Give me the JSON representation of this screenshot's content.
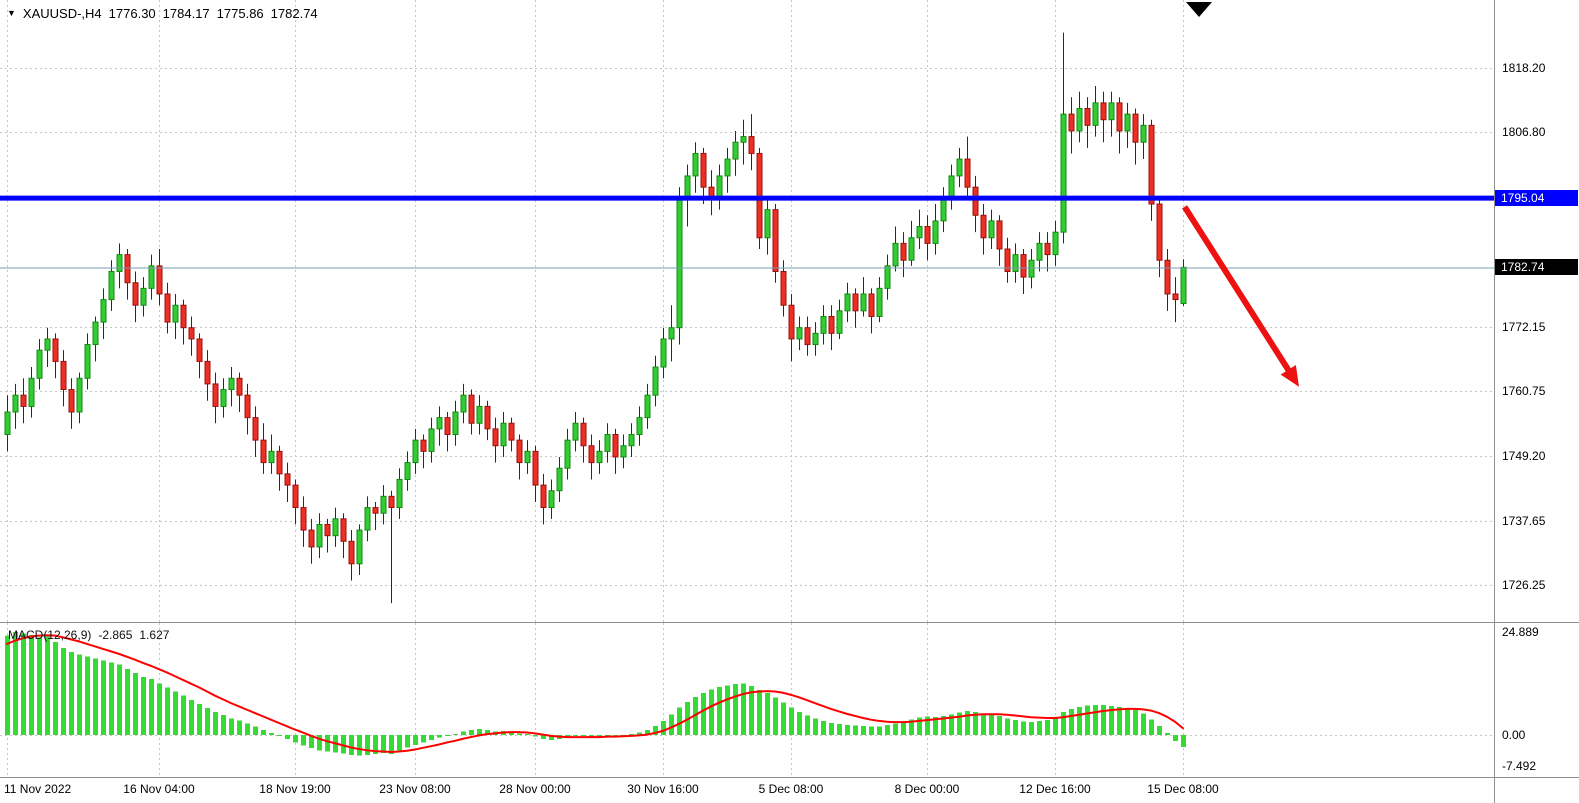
{
  "header": {
    "collapse_arrow": "▼",
    "symbol_period": "XAUUSD-,H4",
    "open": "1776.30",
    "high": "1784.17",
    "low": "1775.86",
    "close": "1782.74"
  },
  "indicator_label": {
    "name": "MACD(12,26,9)",
    "main_value": "-2.865",
    "signal_value": "1.627"
  },
  "price_axis": {
    "ticks": [
      {
        "label": "1818.20",
        "price": 1818.2
      },
      {
        "label": "1806.80",
        "price": 1806.8
      },
      {
        "label": "1772.15",
        "price": 1772.15
      },
      {
        "label": "1760.75",
        "price": 1760.75
      },
      {
        "label": "1749.20",
        "price": 1749.2
      },
      {
        "label": "1737.65",
        "price": 1737.65
      },
      {
        "label": "1726.25",
        "price": 1726.25
      }
    ],
    "line_tag": "1795.04",
    "current_tag": "1782.74"
  },
  "macd_axis": {
    "ticks": [
      {
        "label": "24.889",
        "value": 24.889
      },
      {
        "label": "0.00",
        "value": 0.0
      },
      {
        "label": "-7.492",
        "value": -7.492
      }
    ]
  },
  "colors": {
    "bull": "#33cd33",
    "bull_border": "#118a11",
    "bear": "#ec3023",
    "bear_border": "#991010",
    "wick": "#2b2b2b",
    "grid": "#c6c6c6",
    "hline": "#0000ff",
    "current_line": "#7a9cb0",
    "macd_hist": "#35da35",
    "macd_signal": "#ff0000",
    "arrow": "#ee1111",
    "tag_line_bg": "#0000ff",
    "tag_current_bg": "#000000"
  },
  "chart_data": {
    "type": "candlestick",
    "symbol": "XAUUSD-",
    "timeframe": "H4",
    "ylim": [
      1720,
      1830
    ],
    "grid": "dashed",
    "current_price": 1782.74,
    "ohlc_current": [
      1776.3,
      1784.17,
      1775.86,
      1782.74
    ],
    "horizontal_line": {
      "price": 1795.04
    },
    "arrow_annotation": {
      "from_bar": 147.2,
      "from_price": 1793.5,
      "to_bar": 161.5,
      "to_price": 1761.5
    },
    "x_ticks": [
      {
        "bar": 0,
        "label": "11 Nov 2022"
      },
      {
        "bar": 19,
        "label": "16 Nov 04:00"
      },
      {
        "bar": 36,
        "label": "18 Nov 19:00"
      },
      {
        "bar": 51,
        "label": "23 Nov 08:00"
      },
      {
        "bar": 66,
        "label": "28 Nov 00:00"
      },
      {
        "bar": 82,
        "label": "30 Nov 16:00"
      },
      {
        "bar": 98,
        "label": "5 Dec 08:00"
      },
      {
        "bar": 115,
        "label": "8 Dec 00:00"
      },
      {
        "bar": 131,
        "label": "12 Dec 16:00"
      },
      {
        "bar": 147,
        "label": "15 Dec 08:00"
      }
    ],
    "candles": [
      [
        1753,
        1760,
        1750,
        1757
      ],
      [
        1757,
        1762,
        1754,
        1760
      ],
      [
        1760,
        1763,
        1755,
        1758
      ],
      [
        1758,
        1765,
        1756,
        1763
      ],
      [
        1763,
        1770,
        1761,
        1768
      ],
      [
        1768,
        1772,
        1765,
        1770
      ],
      [
        1770,
        1771,
        1763,
        1766
      ],
      [
        1766,
        1768,
        1758,
        1761
      ],
      [
        1761,
        1763,
        1754,
        1757
      ],
      [
        1757,
        1764,
        1755,
        1763
      ],
      [
        1763,
        1771,
        1761,
        1769
      ],
      [
        1769,
        1774,
        1766,
        1773
      ],
      [
        1773,
        1779,
        1770,
        1777
      ],
      [
        1777,
        1784,
        1775,
        1782
      ],
      [
        1782,
        1787,
        1779,
        1785
      ],
      [
        1785,
        1786,
        1777,
        1780
      ],
      [
        1780,
        1782,
        1773,
        1776
      ],
      [
        1776,
        1781,
        1774,
        1779
      ],
      [
        1779,
        1785,
        1777,
        1783
      ],
      [
        1783,
        1786,
        1776,
        1778
      ],
      [
        1778,
        1780,
        1771,
        1773
      ],
      [
        1773,
        1778,
        1770,
        1776
      ],
      [
        1776,
        1777,
        1769,
        1772
      ],
      [
        1772,
        1774,
        1767,
        1770
      ],
      [
        1770,
        1771,
        1763,
        1766
      ],
      [
        1766,
        1768,
        1759,
        1762
      ],
      [
        1762,
        1764,
        1755,
        1758
      ],
      [
        1758,
        1763,
        1756,
        1761
      ],
      [
        1761,
        1765,
        1758,
        1763
      ],
      [
        1763,
        1764,
        1757,
        1760
      ],
      [
        1760,
        1762,
        1753,
        1756
      ],
      [
        1756,
        1758,
        1749,
        1752
      ],
      [
        1752,
        1755,
        1746,
        1748
      ],
      [
        1748,
        1753,
        1746,
        1750
      ],
      [
        1750,
        1751,
        1743,
        1746
      ],
      [
        1746,
        1748,
        1741,
        1744
      ],
      [
        1744,
        1745,
        1737,
        1740
      ],
      [
        1740,
        1742,
        1733,
        1736
      ],
      [
        1736,
        1738,
        1730,
        1733
      ],
      [
        1733,
        1739,
        1731,
        1737
      ],
      [
        1737,
        1738,
        1732,
        1735
      ],
      [
        1735,
        1740,
        1733,
        1738
      ],
      [
        1738,
        1739,
        1731,
        1734
      ],
      [
        1734,
        1736,
        1727,
        1730
      ],
      [
        1730,
        1737,
        1728,
        1736
      ],
      [
        1736,
        1742,
        1734,
        1740
      ],
      [
        1740,
        1741,
        1736,
        1739
      ],
      [
        1739,
        1744,
        1737,
        1742
      ],
      [
        1742,
        1743,
        1723,
        1740
      ],
      [
        1740,
        1747,
        1738,
        1745
      ],
      [
        1745,
        1750,
        1743,
        1748
      ],
      [
        1748,
        1754,
        1746,
        1752
      ],
      [
        1752,
        1753,
        1747,
        1750
      ],
      [
        1750,
        1756,
        1748,
        1754
      ],
      [
        1754,
        1758,
        1751,
        1756
      ],
      [
        1756,
        1757,
        1750,
        1753
      ],
      [
        1753,
        1759,
        1751,
        1757
      ],
      [
        1757,
        1762,
        1755,
        1760
      ],
      [
        1760,
        1761,
        1753,
        1755
      ],
      [
        1755,
        1760,
        1753,
        1758
      ],
      [
        1758,
        1759,
        1752,
        1754
      ],
      [
        1754,
        1756,
        1748,
        1751
      ],
      [
        1751,
        1757,
        1749,
        1755
      ],
      [
        1755,
        1756,
        1750,
        1752
      ],
      [
        1752,
        1753,
        1745,
        1748
      ],
      [
        1748,
        1752,
        1746,
        1750
      ],
      [
        1750,
        1751,
        1741,
        1744
      ],
      [
        1744,
        1746,
        1737,
        1740
      ],
      [
        1740,
        1745,
        1738,
        1743
      ],
      [
        1743,
        1749,
        1741,
        1747
      ],
      [
        1747,
        1754,
        1745,
        1752
      ],
      [
        1752,
        1757,
        1750,
        1755
      ],
      [
        1755,
        1756,
        1748,
        1751
      ],
      [
        1751,
        1753,
        1745,
        1748
      ],
      [
        1748,
        1752,
        1746,
        1750
      ],
      [
        1750,
        1755,
        1748,
        1753
      ],
      [
        1753,
        1754,
        1746,
        1749
      ],
      [
        1749,
        1753,
        1747,
        1751
      ],
      [
        1751,
        1755,
        1749,
        1753
      ],
      [
        1753,
        1758,
        1751,
        1756
      ],
      [
        1756,
        1762,
        1754,
        1760
      ],
      [
        1760,
        1767,
        1758,
        1765
      ],
      [
        1765,
        1772,
        1763,
        1770
      ],
      [
        1770,
        1776,
        1766,
        1772
      ],
      [
        1772,
        1797,
        1769,
        1795
      ],
      [
        1795,
        1801,
        1790,
        1799
      ],
      [
        1799,
        1805,
        1796,
        1803
      ],
      [
        1803,
        1804,
        1794,
        1797
      ],
      [
        1797,
        1800,
        1792,
        1795
      ],
      [
        1795,
        1801,
        1793,
        1799
      ],
      [
        1799,
        1804,
        1796,
        1802
      ],
      [
        1802,
        1807,
        1799,
        1805
      ],
      [
        1805,
        1809,
        1801,
        1806
      ],
      [
        1806,
        1810,
        1800,
        1803
      ],
      [
        1803,
        1804,
        1786,
        1788
      ],
      [
        1788,
        1795,
        1785,
        1793
      ],
      [
        1793,
        1794,
        1780,
        1782
      ],
      [
        1782,
        1784,
        1774,
        1776
      ],
      [
        1776,
        1778,
        1766,
        1770
      ],
      [
        1770,
        1774,
        1768,
        1772
      ],
      [
        1772,
        1774,
        1767,
        1769
      ],
      [
        1769,
        1773,
        1767,
        1771
      ],
      [
        1771,
        1776,
        1769,
        1774
      ],
      [
        1774,
        1776,
        1768,
        1771
      ],
      [
        1771,
        1777,
        1770,
        1775
      ],
      [
        1775,
        1780,
        1773,
        1778
      ],
      [
        1778,
        1779,
        1772,
        1775
      ],
      [
        1775,
        1781,
        1774,
        1778
      ],
      [
        1778,
        1779,
        1771,
        1774
      ],
      [
        1774,
        1781,
        1773,
        1779
      ],
      [
        1779,
        1785,
        1777,
        1783
      ],
      [
        1783,
        1790,
        1782,
        1787
      ],
      [
        1787,
        1789,
        1781,
        1784
      ],
      [
        1784,
        1791,
        1783,
        1788
      ],
      [
        1788,
        1793,
        1786,
        1790
      ],
      [
        1790,
        1792,
        1784,
        1787
      ],
      [
        1787,
        1794,
        1785,
        1791
      ],
      [
        1791,
        1797,
        1789,
        1795
      ],
      [
        1795,
        1801,
        1793,
        1799
      ],
      [
        1799,
        1804,
        1797,
        1802
      ],
      [
        1802,
        1806,
        1795,
        1797
      ],
      [
        1797,
        1799,
        1789,
        1792
      ],
      [
        1792,
        1794,
        1785,
        1788
      ],
      [
        1788,
        1793,
        1786,
        1791
      ],
      [
        1791,
        1792,
        1783,
        1786
      ],
      [
        1786,
        1788,
        1780,
        1782
      ],
      [
        1782,
        1787,
        1780,
        1785
      ],
      [
        1785,
        1786,
        1778,
        1781
      ],
      [
        1781,
        1786,
        1779,
        1784
      ],
      [
        1784,
        1789,
        1782,
        1787
      ],
      [
        1787,
        1789,
        1782,
        1785
      ],
      [
        1785,
        1791,
        1783,
        1789
      ],
      [
        1789,
        1824.5,
        1787,
        1810
      ],
      [
        1810,
        1813,
        1803,
        1807
      ],
      [
        1807,
        1814,
        1805,
        1811
      ],
      [
        1811,
        1813,
        1804,
        1808
      ],
      [
        1808,
        1815,
        1806,
        1812
      ],
      [
        1812,
        1814,
        1805,
        1809
      ],
      [
        1809,
        1814,
        1806,
        1812
      ],
      [
        1812,
        1813,
        1803,
        1807
      ],
      [
        1807,
        1812,
        1804,
        1810
      ],
      [
        1810,
        1811,
        1801,
        1805
      ],
      [
        1805,
        1810,
        1802,
        1808
      ],
      [
        1808,
        1809,
        1791,
        1794
      ],
      [
        1794,
        1795,
        1781,
        1784
      ],
      [
        1784,
        1786,
        1775,
        1778
      ],
      [
        1778,
        1781,
        1773,
        1777
      ],
      [
        1776.3,
        1784.17,
        1775.86,
        1782.74
      ]
    ],
    "macd": {
      "params": [
        12,
        26,
        9
      ],
      "current_main": -2.865,
      "current_signal": 1.627,
      "y_ticks": [
        24.889,
        0.0,
        -7.492
      ],
      "histogram": [
        24.0,
        24.9,
        24.5,
        24.2,
        23.6,
        23.8,
        22.5,
        21.0,
        20.0,
        19.5,
        19.0,
        18.5,
        18.0,
        17.5,
        17.0,
        16.0,
        15.0,
        14.0,
        13.5,
        12.5,
        11.5,
        10.5,
        9.5,
        8.5,
        7.5,
        6.5,
        5.5,
        4.8,
        4.0,
        3.5,
        2.8,
        2.0,
        1.2,
        0.5,
        -0.2,
        -1.0,
        -1.8,
        -2.5,
        -3.2,
        -3.7,
        -4.0,
        -4.2,
        -4.5,
        -4.8,
        -4.9,
        -4.8,
        -4.6,
        -4.3,
        -4.6,
        -3.8,
        -3.0,
        -2.4,
        -1.8,
        -1.2,
        -0.6,
        -0.2,
        0.3,
        0.8,
        1.2,
        1.4,
        1.2,
        0.9,
        1.0,
        0.8,
        0.4,
        0.2,
        -0.4,
        -1.0,
        -1.2,
        -1.0,
        -0.6,
        -0.1,
        -0.3,
        -0.5,
        -0.4,
        -0.1,
        -0.3,
        -0.2,
        0.2,
        0.6,
        1.2,
        2.2,
        3.4,
        5.0,
        6.6,
        8.0,
        9.2,
        10.2,
        11.0,
        11.6,
        12.0,
        12.3,
        12.4,
        11.8,
        10.9,
        10.1,
        9.0,
        7.8,
        6.6,
        5.6,
        4.7,
        4.0,
        3.4,
        2.9,
        2.6,
        2.4,
        2.3,
        2.2,
        2.0,
        2.1,
        2.4,
        2.8,
        3.3,
        3.8,
        4.2,
        4.5,
        4.4,
        4.6,
        5.0,
        5.4,
        5.8,
        5.5,
        5.2,
        5.0,
        4.6,
        4.0,
        3.6,
        3.3,
        3.2,
        3.4,
        3.6,
        4.0,
        5.5,
        6.3,
        6.8,
        7.1,
        7.3,
        7.2,
        7.0,
        6.8,
        6.5,
        6.0,
        5.2,
        3.8,
        2.2,
        0.5,
        -1.5,
        -2.865
      ],
      "signal": [
        22.0,
        22.8,
        23.4,
        23.8,
        24.0,
        24.1,
        24.0,
        23.6,
        23.1,
        22.6,
        22.0,
        21.4,
        20.8,
        20.2,
        19.6,
        18.9,
        18.2,
        17.4,
        16.7,
        15.9,
        15.1,
        14.2,
        13.3,
        12.4,
        11.5,
        10.5,
        9.5,
        8.6,
        7.7,
        6.9,
        6.1,
        5.3,
        4.5,
        3.7,
        2.9,
        2.1,
        1.3,
        0.6,
        -0.2,
        -0.9,
        -1.5,
        -2.0,
        -2.5,
        -3.0,
        -3.4,
        -3.7,
        -3.9,
        -4.0,
        -4.1,
        -4.0,
        -3.8,
        -3.5,
        -3.1,
        -2.7,
        -2.3,
        -1.8,
        -1.4,
        -0.9,
        -0.5,
        -0.1,
        0.2,
        0.4,
        0.6,
        0.7,
        0.7,
        0.6,
        0.4,
        0.1,
        -0.2,
        -0.4,
        -0.5,
        -0.5,
        -0.5,
        -0.5,
        -0.5,
        -0.4,
        -0.4,
        -0.3,
        -0.2,
        -0.1,
        0.1,
        0.5,
        1.0,
        1.8,
        2.7,
        3.7,
        4.8,
        5.9,
        6.9,
        7.8,
        8.6,
        9.3,
        9.9,
        10.3,
        10.5,
        10.6,
        10.5,
        10.2,
        9.7,
        9.1,
        8.4,
        7.7,
        7.0,
        6.3,
        5.7,
        5.1,
        4.6,
        4.1,
        3.7,
        3.4,
        3.2,
        3.1,
        3.1,
        3.2,
        3.4,
        3.6,
        3.8,
        4.0,
        4.2,
        4.4,
        4.7,
        4.9,
        5.0,
        5.0,
        5.0,
        4.9,
        4.7,
        4.5,
        4.3,
        4.2,
        4.1,
        4.1,
        4.3,
        4.6,
        4.9,
        5.2,
        5.5,
        5.8,
        6.0,
        6.2,
        6.3,
        6.3,
        6.2,
        5.9,
        5.3,
        4.4,
        3.2,
        1.627
      ]
    }
  }
}
